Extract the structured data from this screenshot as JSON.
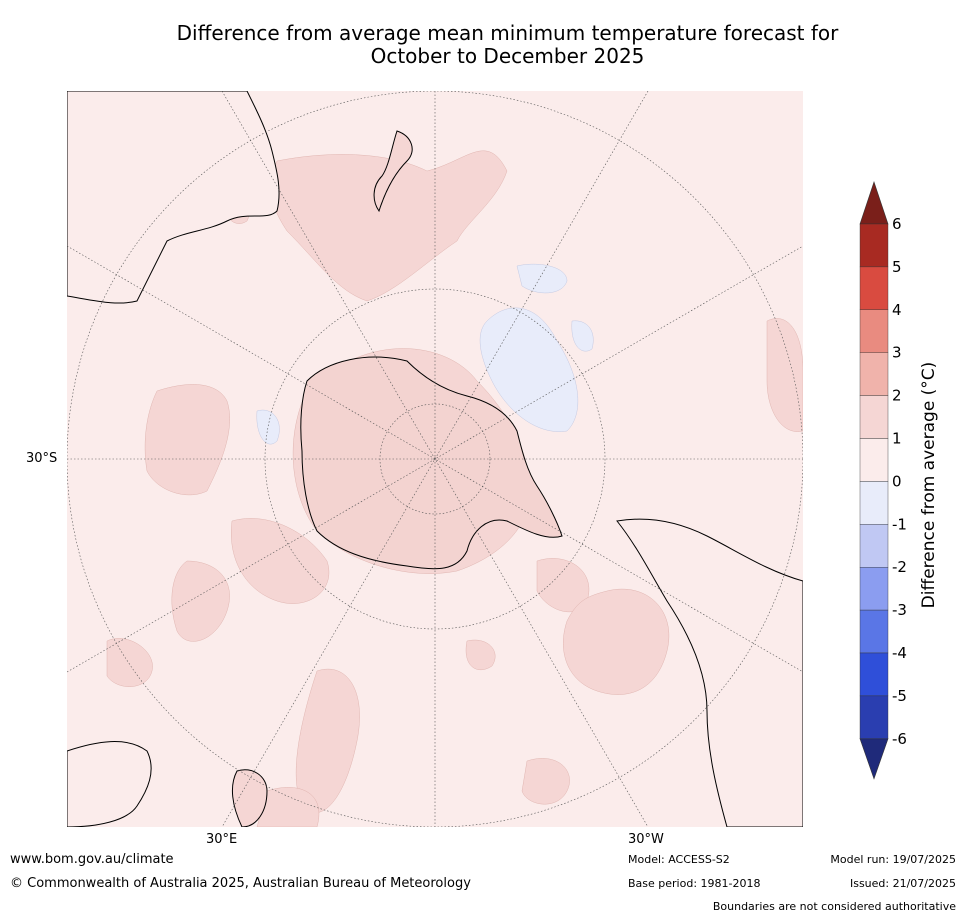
{
  "title_line1": "Difference from average mean minimum temperature forecast for",
  "title_line2": "October to December 2025",
  "map_labels": {
    "lat": "30°S",
    "lon_east": "30°E",
    "lon_west": "30°W"
  },
  "colorbar": {
    "label": "Difference from average (°C)",
    "ticks": [
      "6",
      "5",
      "4",
      "3",
      "2",
      "1",
      "0",
      "-1",
      "-2",
      "-3",
      "-4",
      "-5",
      "-6"
    ],
    "colors": [
      "#7a1f1a",
      "#a82a22",
      "#d94b40",
      "#e98b80",
      "#f0b3ab",
      "#f5d6d4",
      "#fbeceb",
      "#e8ecfa",
      "#c0c8f3",
      "#8b9df0",
      "#5a76e6",
      "#2f4fd9",
      "#2a3eb0",
      "#1f2a7a"
    ]
  },
  "footer": {
    "url": "www.bom.gov.au/climate",
    "copyright": "© Commonwealth of Australia 2025, Australian Bureau of Meteorology",
    "model": "Model: ACCESS-S2",
    "base_period": "Base period: 1981-2018",
    "model_run": "Model run: 19/07/2025",
    "issued": "Issued: 21/07/2025",
    "disclaimer": "Boundaries are not considered authoritative"
  }
}
